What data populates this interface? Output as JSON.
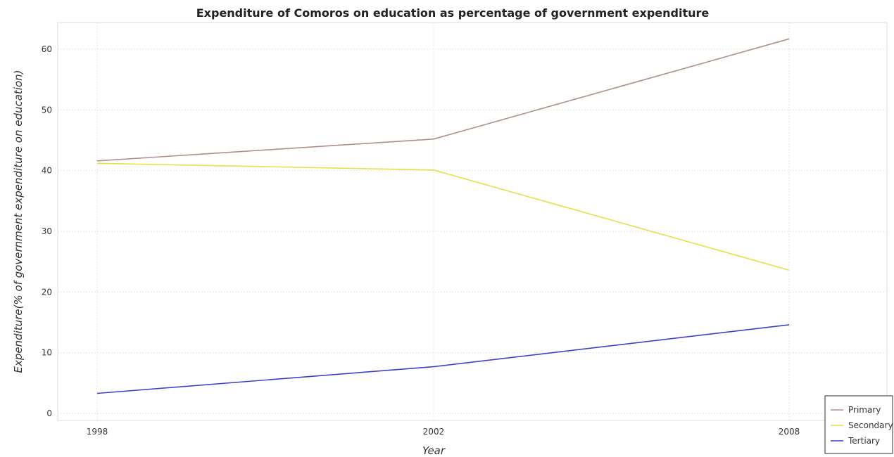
{
  "chart_data": {
    "type": "line",
    "title": "Expenditure of Comoros on education as percentage of government expenditure",
    "xlabel": "Year",
    "ylabel": "Expenditure(% of government expenditure on education)",
    "x": [
      "1998",
      "2002",
      "2008"
    ],
    "ylim": [
      0,
      65
    ],
    "yticks": [
      0,
      10,
      20,
      30,
      40,
      50,
      60
    ],
    "grid": true,
    "legend_position": "bottom-right",
    "series": [
      {
        "name": "Primary",
        "color": "#b08f88",
        "values": [
          41.6,
          45.2,
          61.7
        ]
      },
      {
        "name": "Secondary",
        "color": "#e6e04a",
        "values": [
          41.2,
          40.1,
          23.6
        ]
      },
      {
        "name": "Tertiary",
        "color": "#4040c8",
        "values": [
          3.3,
          7.7,
          14.6
        ]
      }
    ]
  }
}
